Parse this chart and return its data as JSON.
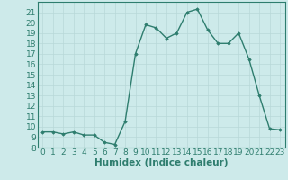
{
  "x": [
    0,
    1,
    2,
    3,
    4,
    5,
    6,
    7,
    8,
    9,
    10,
    11,
    12,
    13,
    14,
    15,
    16,
    17,
    18,
    19,
    20,
    21,
    22,
    23
  ],
  "y": [
    9.5,
    9.5,
    9.3,
    9.5,
    9.2,
    9.2,
    8.5,
    8.3,
    10.5,
    17.0,
    19.8,
    19.5,
    18.5,
    19.0,
    21.0,
    21.3,
    19.3,
    18.0,
    18.0,
    19.0,
    16.5,
    13.0,
    9.8,
    9.7
  ],
  "line_color": "#2e7d6e",
  "bg_color": "#cdeaea",
  "grid_color": "#b8d8d8",
  "xlabel": "Humidex (Indice chaleur)",
  "ylim": [
    8,
    22
  ],
  "xlim": [
    -0.5,
    23.5
  ],
  "yticks": [
    8,
    9,
    10,
    11,
    12,
    13,
    14,
    15,
    16,
    17,
    18,
    19,
    20,
    21
  ],
  "xticks": [
    0,
    1,
    2,
    3,
    4,
    5,
    6,
    7,
    8,
    9,
    10,
    11,
    12,
    13,
    14,
    15,
    16,
    17,
    18,
    19,
    20,
    21,
    22,
    23
  ],
  "marker": "D",
  "marker_size": 1.8,
  "line_width": 1.0,
  "tick_font_size": 6.5,
  "xlabel_font_size": 7.5
}
